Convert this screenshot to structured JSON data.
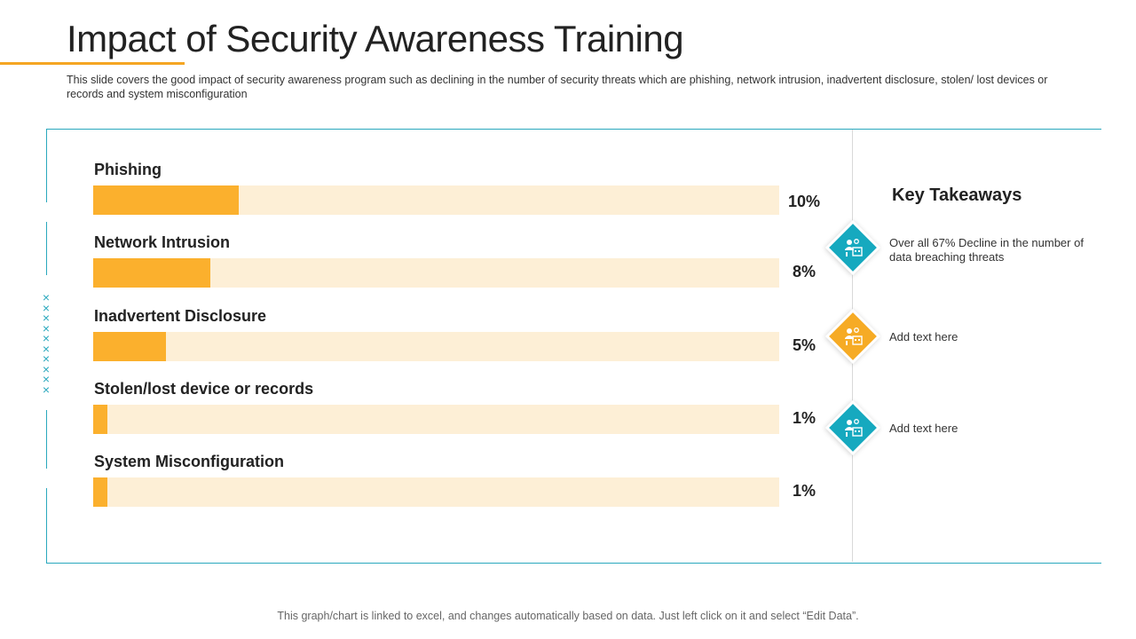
{
  "title": "Impact of Security Awareness Training",
  "subtitle": "This slide covers the good impact of security awareness program such as declining in the number of security threats which are phishing, network intrusion, inadvertent disclosure, stolen/ lost devices or records and system misconfiguration",
  "chart_data": {
    "type": "bar",
    "orientation": "horizontal",
    "categories": [
      "Phishing",
      "Network Intrusion",
      "Inadvertent Disclosure",
      "Stolen/lost device or records",
      "System Misconfiguration"
    ],
    "values": [
      10,
      8,
      5,
      1,
      1
    ],
    "value_labels": [
      "10%",
      "8%",
      "5%",
      "1%",
      "1%"
    ],
    "unit": "%",
    "xlim": [
      0,
      47
    ],
    "colors": {
      "fill": "#fbb02d",
      "track": "#fdefd6"
    }
  },
  "key_takeaways": {
    "title": "Key Takeaways",
    "items": [
      {
        "text": "Over all 67% Decline in the number of data breaching threats",
        "color": "#16a9bf",
        "icon": "security-team-icon"
      },
      {
        "text": "Add text here",
        "color": "#f6ab25",
        "icon": "security-team-icon"
      },
      {
        "text": "Add text here",
        "color": "#16a9bf",
        "icon": "security-team-icon"
      }
    ]
  },
  "footer": "This graph/chart is linked to excel,  and changes automatically based on data. Just left click on it and select “Edit Data”."
}
